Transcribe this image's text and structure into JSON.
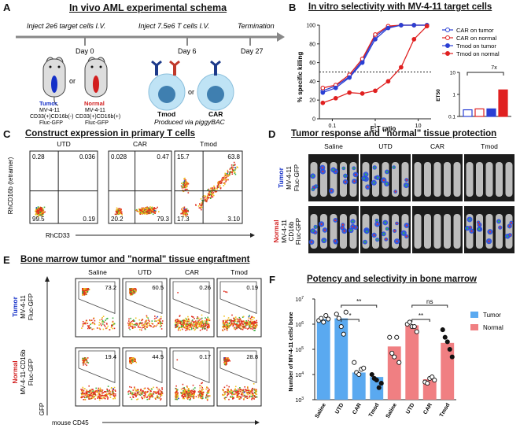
{
  "panels": {
    "A": {
      "letter": "A",
      "title": "In vivo AML experimental schema",
      "inject_targets": "Inject 2e6 target cells I.V.",
      "inject_t": "Inject 7.5e6 T cells I.V.",
      "termination": "Termination",
      "day0": "Day 0",
      "day6": "Day 6",
      "day27": "Day 27",
      "or1": "or",
      "or2": "or",
      "tumor_label": "Tumor",
      "tumor_lines": [
        "MV-4-11",
        "CD33(+)CD16b(-)",
        "Fluc-GFP"
      ],
      "normal_label": "Normal",
      "normal_lines": [
        "MV-4-11",
        "CD33(+)CD16b(+)",
        "Fluc-GFP"
      ],
      "tmod": "Tmod",
      "car": "CAR",
      "produced": "Produced via piggyBAC"
    },
    "B": {
      "letter": "B",
      "title": "In vitro selectivity with MV-4-11 target cells",
      "ylabel": "% specific killing",
      "xlabel": "E:T ratio",
      "legend": [
        "CAR on tumor",
        "CAR on normal",
        "Tmod on tumor",
        "Tmod on normal"
      ],
      "inset_ylabel": "ET50",
      "inset_ann": "7x"
    },
    "C": {
      "letter": "C",
      "title": "Construct expression in primary T cells",
      "ylabel": "RhCD16b (tetramer)",
      "xlabel": "RhCD33",
      "plots": [
        {
          "name": "UTD",
          "q": [
            "0.28",
            "0.036",
            "99.5",
            "0.19"
          ]
        },
        {
          "name": "CAR",
          "q": [
            "0.028",
            "0.47",
            "20.2",
            "79.3"
          ]
        },
        {
          "name": "Tmod",
          "q": [
            "15.7",
            "63.8",
            "17.3",
            "3.10"
          ]
        }
      ]
    },
    "D": {
      "letter": "D",
      "title": "Tumor response and \"normal\" tissue protection",
      "columns": [
        "Saline",
        "UTD",
        "CAR",
        "Tmod"
      ],
      "row1_title": "Tumor",
      "row1_lines": [
        "MV-4-11",
        "Fluc-GFP"
      ],
      "row2_title": "Normal",
      "row2_lines": [
        "MV-4-11",
        "CD16b",
        "Fluc-GFP"
      ]
    },
    "E": {
      "letter": "E",
      "title": "Bone marrow tumor and \"normal\" tissue engraftment",
      "columns": [
        "Saline",
        "UTD",
        "CAR",
        "Tmod"
      ],
      "row1_title": "Tumor",
      "row1_lines": [
        "MV-4-11",
        "Fluc-GFP"
      ],
      "row2_title": "Normal",
      "row2_lines": [
        "MV-4-11-CD16b",
        "Fluc-GFP"
      ],
      "ylabel": "GFP",
      "xlabel": "mouse CD45",
      "row1_values": [
        "73.2",
        "60.5",
        "0.26",
        "0.19"
      ],
      "row2_values": [
        "19.4",
        "44.5",
        "0.17",
        "28.8"
      ]
    },
    "F": {
      "letter": "F",
      "title": "Potency and selectivity in bone marrow",
      "ylabel": "Number of MV-4-11 cells/ bone",
      "legend": [
        "Tumor",
        "Normal"
      ],
      "sig": [
        "**",
        "*",
        "ns",
        "**"
      ]
    }
  },
  "chart_data": [
    {
      "panel": "B",
      "type": "line",
      "title": "In vitro selectivity with MV-4-11 target cells",
      "xlabel": "E:T ratio",
      "ylabel": "% specific killing",
      "xscale": "log",
      "xlim": [
        0.05,
        20
      ],
      "ylim": [
        0,
        100
      ],
      "x_ticks": [
        "0.1",
        "1",
        "10"
      ],
      "y_ticks": [
        "0",
        "20",
        "40",
        "60",
        "80",
        "100"
      ],
      "reference_line_y": 50,
      "x": [
        0.06,
        0.12,
        0.25,
        0.5,
        1,
        2,
        4,
        8,
        16
      ],
      "series": [
        {
          "name": "CAR on tumor",
          "color": "#2a3fd4",
          "marker": "open-circle",
          "values": [
            30,
            35,
            45,
            62,
            88,
            98,
            100,
            100,
            100
          ]
        },
        {
          "name": "CAR on normal",
          "color": "#e02020",
          "marker": "open-circle",
          "values": [
            33,
            36,
            47,
            64,
            90,
            99,
            100,
            100,
            100
          ]
        },
        {
          "name": "Tmod on tumor",
          "color": "#2a3fd4",
          "marker": "filled-circle",
          "values": [
            28,
            33,
            44,
            60,
            85,
            97,
            100,
            100,
            100
          ]
        },
        {
          "name": "Tmod on normal",
          "color": "#e02020",
          "marker": "filled-circle",
          "values": [
            17,
            22,
            28,
            27,
            30,
            40,
            55,
            85,
            99
          ]
        }
      ]
    },
    {
      "panel": "B-inset",
      "type": "bar",
      "ylabel": "ET50",
      "yscale": "log",
      "ylim": [
        0.1,
        10
      ],
      "y_ticks": [
        "0.1",
        "1",
        "10"
      ],
      "categories": [
        "CAR on tumor",
        "CAR on normal",
        "Tmod on tumor",
        "Tmod on normal"
      ],
      "values": [
        0.2,
        0.22,
        0.22,
        1.6
      ],
      "colors": [
        "#2a3fd4",
        "#e02020",
        "#2a3fd4",
        "#e02020"
      ],
      "fill": [
        "open",
        "open",
        "filled",
        "filled"
      ],
      "annotation": "7x"
    },
    {
      "panel": "F",
      "type": "bar",
      "title": "Potency and selectivity in bone marrow",
      "ylabel": "Number of MV-4-11 cells/ bone",
      "yscale": "log",
      "ylim": [
        1000,
        10000000
      ],
      "y_ticks": [
        "10^3",
        "10^4",
        "10^5",
        "10^6",
        "10^7"
      ],
      "categories": [
        "Saline",
        "UTD",
        "CAR",
        "Tmod",
        "Saline",
        "UTD",
        "CAR",
        "Tmod"
      ],
      "series": [
        {
          "name": "Tumor",
          "color": "#5aa9f0",
          "values": [
            1600000,
            1700000,
            12000,
            8000,
            null,
            null,
            null,
            null
          ]
        },
        {
          "name": "Normal",
          "color": "#f07f82",
          "values": [
            null,
            null,
            null,
            null,
            130000,
            900000,
            6500,
            180000
          ]
        }
      ],
      "points": [
        [
          1400000,
          1700000,
          1200000,
          2200000,
          1600000
        ],
        [
          2500000,
          1700000,
          800000,
          400000,
          3000000
        ],
        [
          30000,
          12000,
          10000,
          16000,
          18000
        ],
        [
          10000,
          7000,
          6000,
          3000,
          4500
        ],
        [
          300000,
          70000,
          50000,
          300000,
          30000
        ],
        [
          1000000,
          1200000,
          800000,
          800000,
          500000
        ],
        [
          5000,
          4500,
          7000,
          8000,
          6000
        ],
        [
          600000,
          300000,
          200000,
          100000,
          50000
        ]
      ],
      "significance": [
        "**",
        "*",
        "ns",
        "**"
      ]
    }
  ]
}
